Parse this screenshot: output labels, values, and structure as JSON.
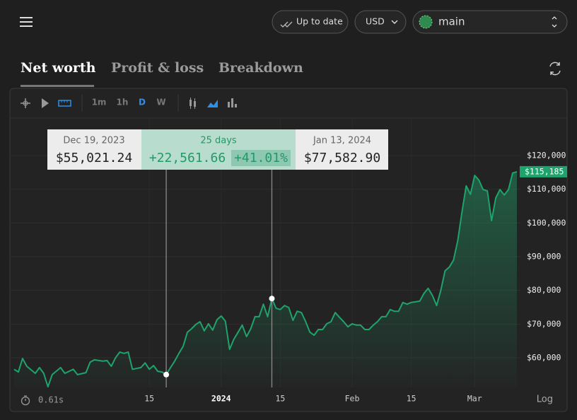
{
  "header": {
    "status": "Up to date",
    "currency": "USD",
    "account": "main"
  },
  "tabs": [
    "Net worth",
    "Profit & loss",
    "Breakdown"
  ],
  "toolbar": {
    "timeframes": [
      "1m",
      "1h",
      "D",
      "W"
    ]
  },
  "footer": {
    "timing": "0.61s",
    "scale_toggle": "Log"
  },
  "chart_data": {
    "type": "area",
    "x": [
      "2023-11-13",
      "2023-11-14",
      "2023-11-15",
      "2023-11-16",
      "2023-11-18",
      "2023-11-19",
      "2023-11-20",
      "2023-11-21",
      "2023-11-22",
      "2023-11-24",
      "2023-11-25",
      "2023-11-27",
      "2023-11-28",
      "2023-11-30",
      "2023-12-01",
      "2023-12-02",
      "2023-12-04",
      "2023-12-05",
      "2023-12-06",
      "2023-12-07",
      "2023-12-08",
      "2023-12-09",
      "2023-12-10",
      "2023-12-11",
      "2023-12-13",
      "2023-12-14",
      "2023-12-15",
      "2023-12-16",
      "2023-12-17",
      "2023-12-18",
      "2023-12-19",
      "2023-12-20",
      "2023-12-21",
      "2023-12-22",
      "2023-12-23",
      "2023-12-24",
      "2023-12-25",
      "2023-12-26",
      "2023-12-27",
      "2023-12-28",
      "2023-12-29",
      "2023-12-30",
      "2023-12-31",
      "2024-01-01",
      "2024-01-02",
      "2024-01-03",
      "2024-01-04",
      "2024-01-05",
      "2024-01-06",
      "2024-01-07",
      "2024-01-08",
      "2024-01-09",
      "2024-01-10",
      "2024-01-11",
      "2024-01-12",
      "2024-01-13",
      "2024-01-14",
      "2024-01-15",
      "2024-01-16",
      "2024-01-17",
      "2024-01-18",
      "2024-01-19",
      "2024-01-20",
      "2024-01-21",
      "2024-01-22",
      "2024-01-23",
      "2024-01-24",
      "2024-01-25",
      "2024-01-26",
      "2024-01-27",
      "2024-01-28",
      "2024-01-29",
      "2024-01-30",
      "2024-01-31",
      "2024-02-01",
      "2024-02-02",
      "2024-02-03",
      "2024-02-04",
      "2024-02-05",
      "2024-02-06",
      "2024-02-07",
      "2024-02-08",
      "2024-02-09",
      "2024-02-10",
      "2024-02-11",
      "2024-02-12",
      "2024-02-13",
      "2024-02-14",
      "2024-02-15",
      "2024-02-16",
      "2024-02-17",
      "2024-02-18",
      "2024-02-19",
      "2024-02-20",
      "2024-02-21",
      "2024-02-22",
      "2024-02-23",
      "2024-02-24",
      "2024-02-25",
      "2024-02-26",
      "2024-02-27",
      "2024-02-28",
      "2024-02-29",
      "2024-03-01",
      "2024-03-02",
      "2024-03-03",
      "2024-03-04",
      "2024-03-05",
      "2024-03-06",
      "2024-03-07",
      "2024-03-08",
      "2024-03-09",
      "2024-03-10",
      "2024-03-11"
    ],
    "series": [
      {
        "name": "Net worth",
        "color": "#1fa36d",
        "values": [
          56600,
          55800,
          59800,
          57500,
          55400,
          57100,
          55400,
          51400,
          55000,
          57100,
          55400,
          56600,
          55000,
          55600,
          58700,
          59400,
          59000,
          59200,
          57500,
          60000,
          61700,
          61300,
          61700,
          56600,
          57100,
          58500,
          56600,
          57700,
          56000,
          55800,
          55021.24,
          57100,
          59000,
          61300,
          63400,
          67600,
          68600,
          69900,
          70700,
          68000,
          70100,
          68200,
          71300,
          72400,
          70900,
          62500,
          65500,
          67600,
          69700,
          66300,
          68600,
          72200,
          72200,
          75900,
          72200,
          77582.9,
          74700,
          74300,
          75500,
          74900,
          71100,
          73800,
          73400,
          70700,
          67600,
          66700,
          68400,
          68400,
          70100,
          70700,
          73400,
          72000,
          70700,
          69200,
          70100,
          69700,
          69700,
          68400,
          68400,
          69700,
          70700,
          72200,
          72200,
          74300,
          73800,
          73800,
          76400,
          75900,
          76400,
          76600,
          76800,
          79100,
          80600,
          78500,
          75500,
          80100,
          85800,
          86900,
          89000,
          94800,
          103200,
          111000,
          108500,
          114100,
          112700,
          109900,
          109500,
          100700,
          107400,
          109900,
          108300,
          109900,
          114800,
          115185
        ]
      }
    ],
    "xlim": [
      "2023-11-12",
      "2024-03-12"
    ],
    "xticks": [
      {
        "value": "2023-12-15",
        "label": "15"
      },
      {
        "value": "2024-01-01",
        "label": "2024"
      },
      {
        "value": "2024-01-15",
        "label": "15"
      },
      {
        "value": "2024-02-01",
        "label": "Feb"
      },
      {
        "value": "2024-02-15",
        "label": "15"
      },
      {
        "value": "2024-03-01",
        "label": "Mar"
      }
    ],
    "ylim": [
      51200,
      131100
    ],
    "yticks": [
      {
        "value": 60000,
        "label": "$60,000"
      },
      {
        "value": 70000,
        "label": "$70,000"
      },
      {
        "value": 80000,
        "label": "$80,000"
      },
      {
        "value": 90000,
        "label": "$90,000"
      },
      {
        "value": 100000,
        "label": "$100,000"
      },
      {
        "value": 110000,
        "label": "$110,000"
      },
      {
        "value": 120000,
        "label": "$120,000"
      }
    ],
    "grid": true,
    "log_scale": false,
    "last_value": {
      "value": 115185,
      "label": "$115,185"
    },
    "measurement": {
      "from_date": "Dec 19, 2023",
      "from_value": "$55,021.24",
      "span": "25 days",
      "change": "+22,561.66",
      "change_pct": "+41.01%",
      "to_date": "Jan 13, 2024",
      "to_value": "$77,582.90"
    }
  }
}
